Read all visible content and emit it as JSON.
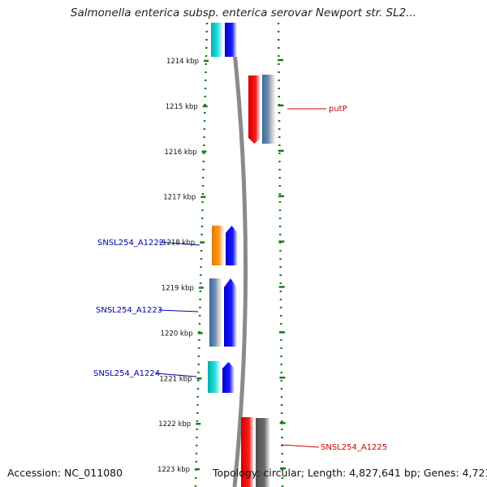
{
  "title": "Salmonella enterica subsp. enterica serovar Newport str. SL2...",
  "footer": {
    "accession": "Accession: NC_011080",
    "topology": "Topology: circular; Length: 4,827,641 bp; Genes: 4,721"
  },
  "scale": {
    "unit": "kbp",
    "ticks": [
      "1214 kbp",
      "1215 kbp",
      "1216 kbp",
      "1217 kbp",
      "1218 kbp",
      "1219 kbp",
      "1220 kbp",
      "1221 kbp",
      "1222 kbp",
      "1223 kbp"
    ]
  },
  "colors": {
    "cyan": "#18c8c8",
    "blue": "#1010ee",
    "orange": "#f08c10",
    "steel": "#4a78a8",
    "red": "#ee1010",
    "gray": "#606060",
    "dotted_track": "#1a7a1a",
    "backbone": "#8a8a8a",
    "label_blue": "#0000aa",
    "label_red": "#cc0000"
  },
  "gene_labels": [
    {
      "text": "putP",
      "color": "red"
    },
    {
      "text": "SNSL254_A1222",
      "color": "blue"
    },
    {
      "text": "SNSL254_A1223",
      "color": "blue"
    },
    {
      "text": "SNSL254_A1224",
      "color": "blue"
    },
    {
      "text": "SNSL254_A1225",
      "color": "red"
    }
  ]
}
